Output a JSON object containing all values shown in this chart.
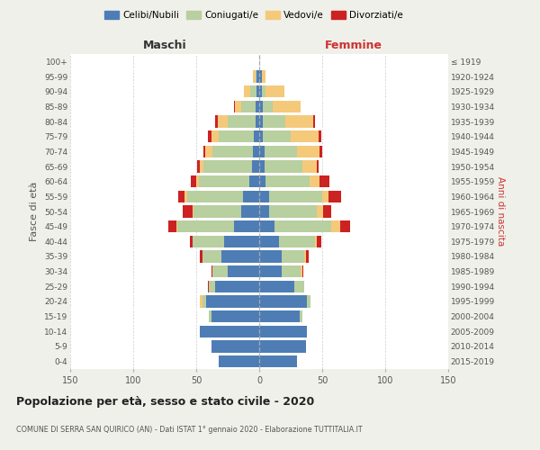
{
  "age_groups": [
    "0-4",
    "5-9",
    "10-14",
    "15-19",
    "20-24",
    "25-29",
    "30-34",
    "35-39",
    "40-44",
    "45-49",
    "50-54",
    "55-59",
    "60-64",
    "65-69",
    "70-74",
    "75-79",
    "80-84",
    "85-89",
    "90-94",
    "95-99",
    "100+"
  ],
  "birth_years": [
    "2015-2019",
    "2010-2014",
    "2005-2009",
    "2000-2004",
    "1995-1999",
    "1990-1994",
    "1985-1989",
    "1980-1984",
    "1975-1979",
    "1970-1974",
    "1965-1969",
    "1960-1964",
    "1955-1959",
    "1950-1954",
    "1945-1949",
    "1940-1944",
    "1935-1939",
    "1930-1934",
    "1925-1929",
    "1920-1924",
    "≤ 1919"
  ],
  "maschi": {
    "celibi": [
      32,
      38,
      47,
      38,
      42,
      35,
      25,
      30,
      28,
      20,
      14,
      13,
      8,
      6,
      5,
      4,
      3,
      3,
      2,
      2,
      0
    ],
    "coniugati": [
      0,
      0,
      0,
      2,
      3,
      5,
      12,
      15,
      25,
      45,
      38,
      44,
      40,
      38,
      32,
      28,
      22,
      11,
      5,
      1,
      0
    ],
    "vedovi": [
      0,
      0,
      0,
      0,
      2,
      0,
      0,
      0,
      0,
      1,
      1,
      2,
      2,
      3,
      6,
      6,
      8,
      5,
      5,
      2,
      0
    ],
    "divorziati": [
      0,
      0,
      0,
      0,
      0,
      1,
      1,
      2,
      2,
      6,
      8,
      5,
      4,
      2,
      1,
      3,
      2,
      1,
      0,
      0,
      0
    ]
  },
  "femmine": {
    "nubili": [
      30,
      37,
      38,
      32,
      38,
      28,
      18,
      18,
      16,
      12,
      8,
      8,
      5,
      4,
      4,
      3,
      3,
      3,
      2,
      2,
      0
    ],
    "coniugate": [
      0,
      0,
      0,
      2,
      3,
      8,
      15,
      18,
      28,
      45,
      38,
      42,
      35,
      30,
      26,
      22,
      18,
      8,
      3,
      0,
      0
    ],
    "vedove": [
      0,
      0,
      0,
      0,
      0,
      0,
      1,
      1,
      2,
      7,
      5,
      5,
      8,
      12,
      18,
      22,
      22,
      22,
      15,
      3,
      0
    ],
    "divorziate": [
      0,
      0,
      0,
      0,
      0,
      0,
      1,
      2,
      3,
      8,
      6,
      10,
      8,
      1,
      2,
      2,
      1,
      0,
      0,
      0,
      0
    ]
  },
  "colors": {
    "celibi": "#4e7db5",
    "coniugati": "#b8cfa0",
    "vedovi": "#f5c97a",
    "divorziati": "#cc2222"
  },
  "xlim": 150,
  "title": "Popolazione per età, sesso e stato civile - 2020",
  "subtitle": "COMUNE DI SERRA SAN QUIRICO (AN) - Dati ISTAT 1° gennaio 2020 - Elaborazione TUTTITALIA.IT",
  "ylabel_left": "Fasce di età",
  "ylabel_right": "Anni di nascita",
  "xlabel_maschi": "Maschi",
  "xlabel_femmine": "Femmine",
  "bg_color": "#f0f0ea",
  "plot_bg_color": "#ffffff",
  "legend_labels": [
    "Celibi/Nubili",
    "Coniugati/e",
    "Vedovi/e",
    "Divorziati/e"
  ]
}
